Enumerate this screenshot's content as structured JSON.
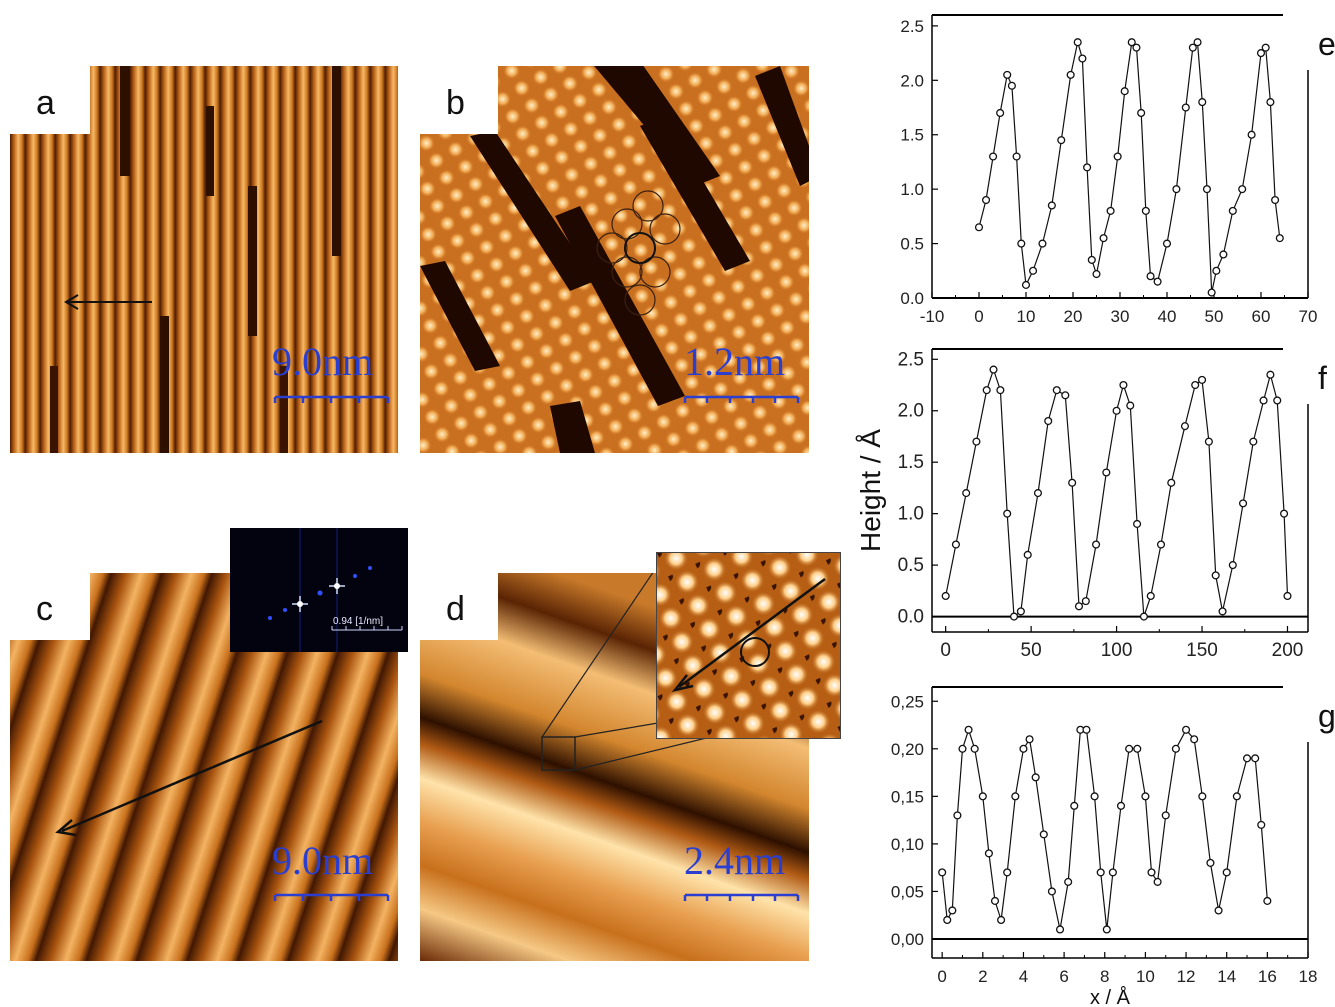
{
  "panels": {
    "a": {
      "label": "a",
      "scale": "9.0nm"
    },
    "b": {
      "label": "b",
      "scale": "1.2nm"
    },
    "c": {
      "label": "c",
      "scale": "9.0nm",
      "inset_scale": "0.94 [1/nm]"
    },
    "d": {
      "label": "d",
      "scale": "2.4nm"
    }
  },
  "colors": {
    "stm_dark": "#3a1400",
    "stm_mid": "#c8701c",
    "stm_light": "#ffe2a6",
    "scale_bar": "#2a3fd0",
    "fft_bg": "#03030f"
  },
  "chart_data": [
    {
      "type": "scatter",
      "panel_label": "e",
      "xlim": [
        -10,
        70
      ],
      "ylim": [
        0,
        2.6
      ],
      "xticks": [
        "-10",
        "0",
        "10",
        "20",
        "30",
        "40",
        "50",
        "60",
        "70"
      ],
      "yticks": [
        "0.0",
        "0.5",
        "1.0",
        "1.5",
        "2.0",
        "2.5"
      ],
      "series": [
        {
          "marker": "circle-open",
          "points": [
            [
              0,
              0.65
            ],
            [
              1.5,
              0.9
            ],
            [
              3,
              1.3
            ],
            [
              4.5,
              1.7
            ],
            [
              6,
              2.05
            ],
            [
              7,
              1.95
            ],
            [
              8,
              1.3
            ],
            [
              9,
              0.5
            ],
            [
              10,
              0.12
            ],
            [
              11.5,
              0.25
            ],
            [
              13.5,
              0.5
            ],
            [
              15.5,
              0.85
            ],
            [
              17.5,
              1.45
            ],
            [
              19.5,
              2.05
            ],
            [
              21,
              2.35
            ],
            [
              22,
              2.2
            ],
            [
              23,
              1.2
            ],
            [
              24,
              0.35
            ],
            [
              25,
              0.22
            ],
            [
              26.5,
              0.55
            ],
            [
              28,
              0.8
            ],
            [
              29.5,
              1.3
            ],
            [
              31,
              1.9
            ],
            [
              32.5,
              2.35
            ],
            [
              33.5,
              2.3
            ],
            [
              34.5,
              1.7
            ],
            [
              35.5,
              0.8
            ],
            [
              36.5,
              0.2
            ],
            [
              38,
              0.15
            ],
            [
              40,
              0.5
            ],
            [
              42,
              1.0
            ],
            [
              44,
              1.75
            ],
            [
              45.5,
              2.3
            ],
            [
              46.5,
              2.35
            ],
            [
              47.5,
              1.8
            ],
            [
              48.5,
              1.0
            ],
            [
              49.5,
              0.05
            ],
            [
              50.5,
              0.25
            ],
            [
              52,
              0.4
            ],
            [
              54,
              0.8
            ],
            [
              56,
              1.0
            ],
            [
              58,
              1.5
            ],
            [
              60,
              2.25
            ],
            [
              61,
              2.3
            ],
            [
              62,
              1.8
            ],
            [
              63,
              0.9
            ],
            [
              64,
              0.55
            ]
          ]
        }
      ]
    },
    {
      "type": "scatter",
      "panel_label": "f",
      "xlim": [
        -8,
        212
      ],
      "ylim": [
        -0.15,
        2.6
      ],
      "xticks": [
        "0",
        "50",
        "100",
        "150",
        "200"
      ],
      "yticks": [
        "0.0",
        "0.5",
        "1.0",
        "1.5",
        "2.0",
        "2.5"
      ],
      "ylabel": "Height / Å",
      "series": [
        {
          "marker": "circle-open",
          "points": [
            [
              0,
              0.2
            ],
            [
              6,
              0.7
            ],
            [
              12,
              1.2
            ],
            [
              18,
              1.7
            ],
            [
              24,
              2.2
            ],
            [
              28,
              2.4
            ],
            [
              32,
              2.2
            ],
            [
              36,
              1.0
            ],
            [
              40,
              0.0
            ],
            [
              44,
              0.05
            ],
            [
              48,
              0.6
            ],
            [
              54,
              1.2
            ],
            [
              60,
              1.9
            ],
            [
              65,
              2.2
            ],
            [
              70,
              2.15
            ],
            [
              74,
              1.3
            ],
            [
              78,
              0.1
            ],
            [
              82,
              0.15
            ],
            [
              88,
              0.7
            ],
            [
              94,
              1.4
            ],
            [
              100,
              2.0
            ],
            [
              104,
              2.25
            ],
            [
              108,
              2.05
            ],
            [
              112,
              0.9
            ],
            [
              116,
              0.0
            ],
            [
              120,
              0.2
            ],
            [
              126,
              0.7
            ],
            [
              132,
              1.3
            ],
            [
              140,
              1.85
            ],
            [
              146,
              2.25
            ],
            [
              150,
              2.3
            ],
            [
              154,
              1.7
            ],
            [
              158,
              0.4
            ],
            [
              162,
              0.05
            ],
            [
              168,
              0.5
            ],
            [
              174,
              1.1
            ],
            [
              180,
              1.7
            ],
            [
              186,
              2.1
            ],
            [
              190,
              2.35
            ],
            [
              194,
              2.1
            ],
            [
              198,
              1.0
            ],
            [
              200,
              0.2
            ]
          ]
        }
      ]
    },
    {
      "type": "scatter",
      "panel_label": "g",
      "xlim": [
        -0.5,
        18
      ],
      "ylim": [
        -0.02,
        0.265
      ],
      "xticks": [
        "0",
        "2",
        "4",
        "6",
        "8",
        "10",
        "12",
        "14",
        "16",
        "18"
      ],
      "yticks": [
        "0,00",
        "0,05",
        "0,10",
        "0,15",
        "0,20",
        "0,25"
      ],
      "xlabel": "x / Å",
      "series": [
        {
          "marker": "circle-open",
          "points": [
            [
              0,
              0.07
            ],
            [
              0.25,
              0.02
            ],
            [
              0.5,
              0.03
            ],
            [
              0.75,
              0.13
            ],
            [
              1,
              0.2
            ],
            [
              1.3,
              0.22
            ],
            [
              1.6,
              0.2
            ],
            [
              2,
              0.15
            ],
            [
              2.3,
              0.09
            ],
            [
              2.6,
              0.04
            ],
            [
              2.9,
              0.02
            ],
            [
              3.2,
              0.07
            ],
            [
              3.6,
              0.15
            ],
            [
              4,
              0.2
            ],
            [
              4.3,
              0.21
            ],
            [
              4.6,
              0.17
            ],
            [
              5,
              0.11
            ],
            [
              5.4,
              0.05
            ],
            [
              5.8,
              0.01
            ],
            [
              6.2,
              0.06
            ],
            [
              6.5,
              0.14
            ],
            [
              6.8,
              0.22
            ],
            [
              7.1,
              0.22
            ],
            [
              7.5,
              0.15
            ],
            [
              7.8,
              0.07
            ],
            [
              8.1,
              0.01
            ],
            [
              8.4,
              0.07
            ],
            [
              8.8,
              0.14
            ],
            [
              9.2,
              0.2
            ],
            [
              9.6,
              0.2
            ],
            [
              10,
              0.15
            ],
            [
              10.3,
              0.07
            ],
            [
              10.6,
              0.06
            ],
            [
              11,
              0.13
            ],
            [
              11.5,
              0.2
            ],
            [
              12,
              0.22
            ],
            [
              12.4,
              0.21
            ],
            [
              12.8,
              0.15
            ],
            [
              13.2,
              0.08
            ],
            [
              13.6,
              0.03
            ],
            [
              14,
              0.07
            ],
            [
              14.5,
              0.15
            ],
            [
              15,
              0.19
            ],
            [
              15.4,
              0.19
            ],
            [
              15.7,
              0.12
            ],
            [
              16,
              0.04
            ]
          ]
        }
      ]
    }
  ]
}
